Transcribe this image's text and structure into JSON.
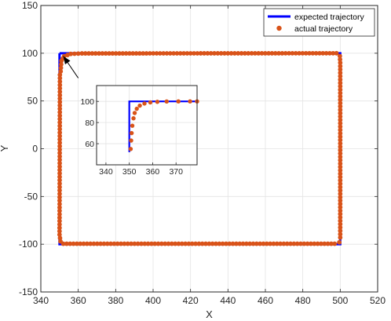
{
  "chart_data": {
    "type": "line",
    "xlabel": "X",
    "ylabel": "Y",
    "xlim": [
      340,
      520
    ],
    "ylim": [
      -150,
      150
    ],
    "xticks": [
      340,
      360,
      380,
      400,
      420,
      440,
      460,
      480,
      500,
      520
    ],
    "yticks": [
      -150,
      -100,
      -50,
      0,
      50,
      100,
      150
    ],
    "grid": true,
    "legend": {
      "placement": "top-right",
      "entries": [
        {
          "label": "expected trajectory",
          "style": "line",
          "color": "#0000ff"
        },
        {
          "label": "actual trajectory",
          "style": "marker",
          "color": "#d95319"
        }
      ]
    },
    "series": [
      {
        "name": "expected trajectory",
        "style": "line",
        "color": "#0000ff",
        "points": [
          [
            350,
            100
          ],
          [
            500,
            100
          ],
          [
            500,
            -100
          ],
          [
            350,
            -100
          ],
          [
            350,
            100
          ]
        ]
      },
      {
        "name": "actual trajectory",
        "style": "marker",
        "color": "#d95319",
        "path": [
          [
            350.6,
            81
          ],
          [
            351,
            92
          ],
          [
            352.5,
            97
          ],
          [
            356,
            99.3
          ],
          [
            362,
            99.8
          ],
          [
            498,
            100
          ],
          [
            499.8,
            97
          ],
          [
            500,
            90
          ],
          [
            500,
            -93
          ],
          [
            499.5,
            -98
          ],
          [
            497,
            -99.5
          ],
          [
            352,
            -99.5
          ],
          [
            350.5,
            -97
          ],
          [
            350,
            -90
          ],
          [
            350.2,
            81
          ]
        ]
      }
    ],
    "inset": {
      "xlim": [
        336,
        379
      ],
      "ylim": [
        40,
        115
      ],
      "xticks": [
        340,
        350,
        360,
        370
      ],
      "yticks": [
        60,
        80,
        100
      ],
      "grid": true,
      "expected": [
        [
          350,
          52
        ],
        [
          350,
          100
        ],
        [
          379,
          100
        ]
      ],
      "actual": [
        [
          350.6,
          55
        ],
        [
          350.8,
          63
        ],
        [
          351,
          70
        ],
        [
          351.3,
          77
        ],
        [
          351.8,
          84
        ],
        [
          352.3,
          89
        ],
        [
          353.2,
          93
        ],
        [
          354.5,
          96
        ],
        [
          356.5,
          98
        ],
        [
          359,
          99.1
        ],
        [
          362,
          99.6
        ],
        [
          366,
          99.9
        ],
        [
          371,
          100
        ],
        [
          376,
          100
        ],
        [
          379,
          100
        ]
      ]
    },
    "annotation": {
      "type": "arrow",
      "from": [
        360,
        74
      ],
      "to": [
        352,
        97
      ]
    }
  }
}
